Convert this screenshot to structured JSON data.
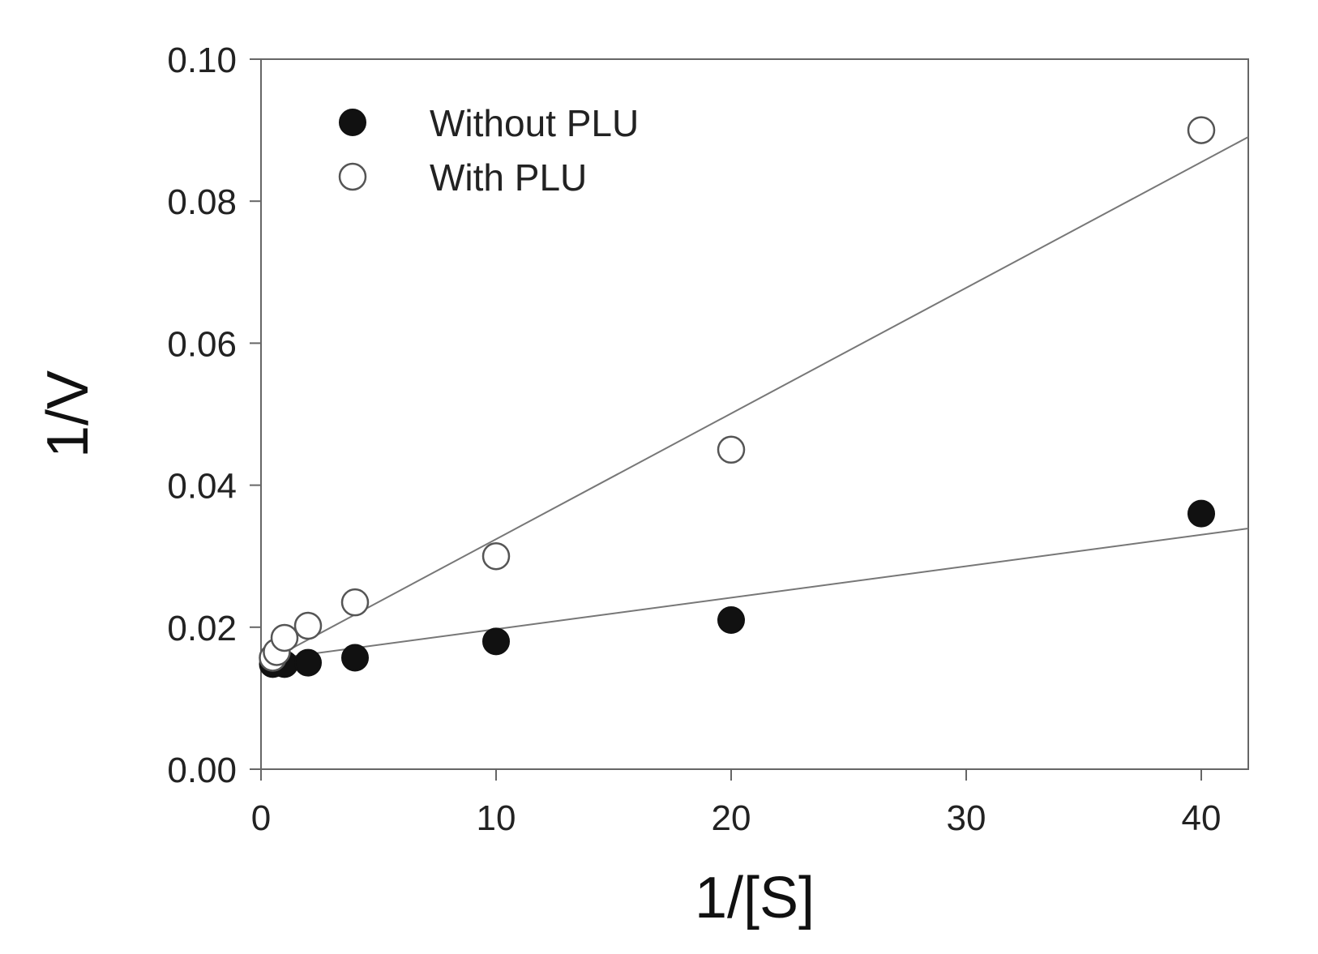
{
  "chart_data": {
    "type": "scatter",
    "xlabel": "1/[S]",
    "ylabel": "1/V",
    "xlim": [
      0,
      42
    ],
    "ylim": [
      0,
      0.1
    ],
    "x_ticks": [
      0,
      10,
      20,
      30,
      40
    ],
    "y_ticks": [
      0.0,
      0.02,
      0.04,
      0.06,
      0.08,
      0.1
    ],
    "x_tick_labels": [
      "0",
      "10",
      "20",
      "30",
      "40"
    ],
    "y_tick_labels": [
      "0.00",
      "0.02",
      "0.04",
      "0.06",
      "0.08",
      "0.10"
    ],
    "grid": false,
    "legend_position": "top-left",
    "series": [
      {
        "name": "Without PLU",
        "marker": "filled-circle",
        "color": "#111111",
        "x": [
          0.5,
          1,
          2,
          4,
          10,
          20,
          40
        ],
        "y": [
          0.0148,
          0.0148,
          0.015,
          0.0157,
          0.018,
          0.021,
          0.036
        ],
        "fit": {
          "intercept": 0.0153,
          "slope": 0.000443
        }
      },
      {
        "name": "With PLU",
        "marker": "open-circle",
        "color": "#111111",
        "x": [
          0.5,
          0.67,
          1,
          2,
          4,
          10,
          20,
          40
        ],
        "y": [
          0.0157,
          0.0165,
          0.0185,
          0.0202,
          0.0235,
          0.03,
          0.045,
          0.09
        ],
        "fit": {
          "intercept": 0.0147,
          "slope": 0.00177
        }
      }
    ]
  }
}
